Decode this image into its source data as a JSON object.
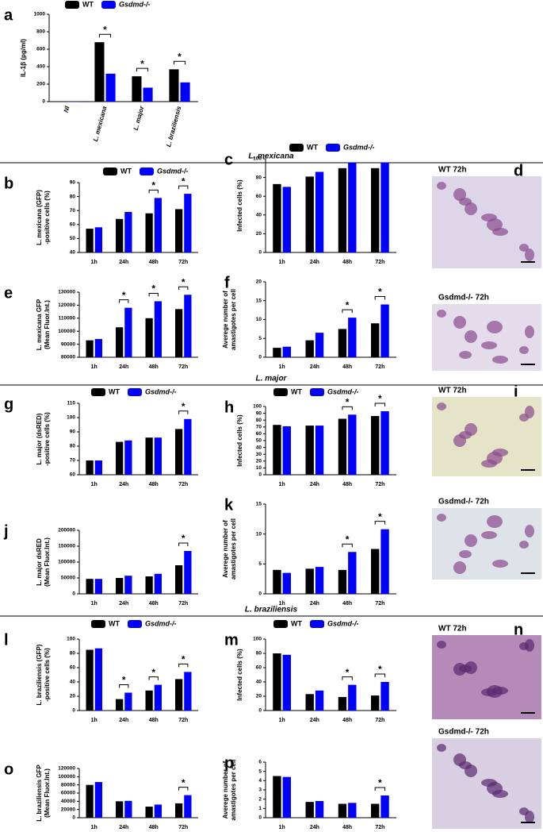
{
  "sections": [
    "L. mexicana",
    "L. major",
    "L. braziliensis"
  ],
  "micrographs": [
    {
      "panel": "d",
      "captions": [
        "WT 72h",
        "Gsdmd-/- 72h"
      ]
    },
    {
      "panel": "i",
      "captions": [
        "WT 72h",
        "Gsdmd-/- 72h"
      ]
    },
    {
      "panel": "n",
      "captions": [
        "WT 72h",
        "Gsdmd-/- 72h"
      ]
    }
  ],
  "chart_data": [
    {
      "type": "bar",
      "panel": "a",
      "ylabel": [
        "IL-1β (pg/ml)"
      ],
      "categories": [
        "NI",
        "L. mexicana",
        "L. major",
        "L. braziliensis"
      ],
      "series": [
        {
          "name": "WT",
          "color": "#000000",
          "values": [
            0,
            680,
            290,
            370
          ]
        },
        {
          "name": "Gsdmd-/-",
          "color": "#0000ff",
          "values": [
            0,
            320,
            160,
            220
          ]
        }
      ],
      "ylim": [
        0,
        1000
      ],
      "yticks": [
        0,
        200,
        400,
        600,
        800,
        1000
      ],
      "annotations": [
        {
          "text": "*",
          "category": "L. mexicana"
        },
        {
          "text": "*",
          "category": "L. major"
        },
        {
          "text": "*",
          "category": "L. braziliensis"
        }
      ]
    },
    {
      "type": "bar",
      "panel": "b",
      "ylabel": [
        "L. mexicana (GFP)",
        "-positive cells (%)"
      ],
      "categories": [
        "1h",
        "24h",
        "48h",
        "72h"
      ],
      "series": [
        {
          "name": "WT",
          "color": "#000000",
          "values": [
            57,
            64,
            68,
            71
          ]
        },
        {
          "name": "Gsdmd-/-",
          "color": "#0000ff",
          "values": [
            58,
            69,
            79,
            82
          ]
        }
      ],
      "ylim": [
        40,
        90
      ],
      "yticks": [
        40,
        50,
        60,
        70,
        80,
        90
      ],
      "annotations": [
        {
          "text": "*",
          "category": "48h"
        },
        {
          "text": "*",
          "category": "72h"
        }
      ]
    },
    {
      "type": "bar",
      "panel": "c",
      "ylabel": [
        "Infected cells (%)"
      ],
      "categories": [
        "1h",
        "24h",
        "48h",
        "72h"
      ],
      "series": [
        {
          "name": "WT",
          "color": "#000000",
          "values": [
            73,
            81,
            90,
            90
          ]
        },
        {
          "name": "Gsdmd-/-",
          "color": "#0000ff",
          "values": [
            70,
            86,
            96,
            96
          ]
        }
      ],
      "ylim": [
        0,
        100
      ],
      "yticks": [
        0,
        20,
        40,
        60,
        80,
        100
      ],
      "annotations": []
    },
    {
      "type": "bar",
      "panel": "e",
      "ylabel": [
        "L. mexicana GFP",
        "(Mean Fluor.Int.)"
      ],
      "categories": [
        "1h",
        "24h",
        "48h",
        "72h"
      ],
      "series": [
        {
          "color": "#000000",
          "values": [
            93000,
            103000,
            110000,
            117000
          ]
        },
        {
          "color": "#0000ff",
          "values": [
            94000,
            118000,
            123000,
            128000
          ]
        }
      ],
      "ylim": [
        80000,
        130000
      ],
      "yticks": [
        80000,
        90000,
        100000,
        110000,
        120000,
        130000
      ],
      "annotations": [
        {
          "text": "*",
          "category": "24h"
        },
        {
          "text": "*",
          "category": "48h"
        },
        {
          "text": "*",
          "category": "72h"
        }
      ]
    },
    {
      "type": "bar",
      "panel": "f",
      "ylabel": [
        "Averege number of",
        "amastigotes per cell"
      ],
      "categories": [
        "1h",
        "24h",
        "48h",
        "72h"
      ],
      "series": [
        {
          "color": "#000000",
          "values": [
            2.5,
            4.5,
            7.5,
            9
          ]
        },
        {
          "color": "#0000ff",
          "values": [
            2.8,
            6.5,
            10.5,
            14
          ]
        }
      ],
      "ylim": [
        0,
        20
      ],
      "yticks": [
        0,
        5,
        10,
        15,
        20
      ],
      "annotations": [
        {
          "text": "*",
          "category": "48h"
        },
        {
          "text": "*",
          "category": "72h"
        }
      ]
    },
    {
      "type": "bar",
      "panel": "g",
      "ylabel": [
        "L. major (dsRED)",
        "-positive cells (%)"
      ],
      "categories": [
        "1h",
        "24h",
        "48h",
        "72h"
      ],
      "series": [
        {
          "name": "WT",
          "color": "#000000",
          "values": [
            70,
            83,
            86,
            92
          ]
        },
        {
          "name": "Gsdmd-/-",
          "color": "#0000ff",
          "values": [
            70,
            84,
            86,
            99
          ]
        }
      ],
      "ylim": [
        60,
        110
      ],
      "yticks": [
        60,
        70,
        80,
        90,
        100,
        110
      ],
      "annotations": [
        {
          "text": "*",
          "category": "72h"
        }
      ]
    },
    {
      "type": "bar",
      "panel": "h",
      "ylabel": [
        "Infected cells (%)"
      ],
      "categories": [
        "1h",
        "24h",
        "48h",
        "72h"
      ],
      "series": [
        {
          "name": "WT",
          "color": "#000000",
          "values": [
            73,
            72,
            82,
            86
          ]
        },
        {
          "name": "Gsdmd-/-",
          "color": "#0000ff",
          "values": [
            71,
            72,
            88,
            93
          ]
        }
      ],
      "ylim": [
        0,
        100
      ],
      "yticks": [
        0,
        10,
        20,
        30,
        40,
        50,
        60,
        70,
        80,
        90,
        100
      ],
      "annotations": [
        {
          "text": "*",
          "category": "48h"
        },
        {
          "text": "*",
          "category": "72h"
        }
      ]
    },
    {
      "type": "bar",
      "panel": "j",
      "ylabel": [
        "L. major dsRED",
        "(Mean Fluor.Int.)"
      ],
      "categories": [
        "1h",
        "24h",
        "48h",
        "72h"
      ],
      "series": [
        {
          "color": "#000000",
          "values": [
            47000,
            50000,
            55000,
            90000
          ]
        },
        {
          "color": "#0000ff",
          "values": [
            47000,
            57000,
            63000,
            135000
          ]
        }
      ],
      "ylim": [
        0,
        200000
      ],
      "yticks": [
        0,
        50000,
        100000,
        150000,
        200000
      ],
      "annotations": [
        {
          "text": "*",
          "category": "72h"
        }
      ]
    },
    {
      "type": "bar",
      "panel": "k",
      "ylabel": [
        "Averege number of",
        "amastigotes per cell"
      ],
      "categories": [
        "1h",
        "24h",
        "48h",
        "72h"
      ],
      "series": [
        {
          "color": "#000000",
          "values": [
            4,
            4.2,
            4,
            7.5
          ]
        },
        {
          "color": "#0000ff",
          "values": [
            3.5,
            4.5,
            7,
            10.8
          ]
        }
      ],
      "ylim": [
        0,
        15
      ],
      "yticks": [
        0,
        5,
        10,
        15
      ],
      "annotations": [
        {
          "text": "*",
          "category": "48h"
        },
        {
          "text": "*",
          "category": "72h"
        }
      ]
    },
    {
      "type": "bar",
      "panel": "l",
      "ylabel": [
        "L. braziliensis (GFP)",
        "-positive cells (%)"
      ],
      "categories": [
        "1h",
        "24h",
        "48h",
        "72h"
      ],
      "series": [
        {
          "name": "WT",
          "color": "#000000",
          "values": [
            85,
            16,
            28,
            44
          ]
        },
        {
          "name": "Gsdmd-/-",
          "color": "#0000ff",
          "values": [
            87,
            25,
            36,
            54
          ]
        }
      ],
      "ylim": [
        0,
        100
      ],
      "yticks": [
        0,
        20,
        40,
        60,
        80,
        100
      ],
      "annotations": [
        {
          "text": "*",
          "category": "24h"
        },
        {
          "text": "*",
          "category": "48h"
        },
        {
          "text": "*",
          "category": "72h"
        }
      ]
    },
    {
      "type": "bar",
      "panel": "m",
      "ylabel": [
        "Infected cells (%)"
      ],
      "categories": [
        "1h",
        "24h",
        "48h",
        "72h"
      ],
      "series": [
        {
          "name": "WT",
          "color": "#000000",
          "values": [
            80,
            23,
            19,
            21
          ]
        },
        {
          "name": "Gsdmd-/-",
          "color": "#0000ff",
          "values": [
            78,
            28,
            36,
            40
          ]
        }
      ],
      "ylim": [
        0,
        100
      ],
      "yticks": [
        0,
        20,
        40,
        60,
        80,
        100
      ],
      "annotations": [
        {
          "text": "*",
          "category": "48h"
        },
        {
          "text": "*",
          "category": "72h"
        }
      ]
    },
    {
      "type": "bar",
      "panel": "o",
      "ylabel": [
        "L. braziliensis GFP",
        "(Mean Fluor.Int.)"
      ],
      "categories": [
        "1h",
        "24h",
        "48h",
        "72h"
      ],
      "series": [
        {
          "color": "#000000",
          "values": [
            80000,
            40000,
            27000,
            35000
          ]
        },
        {
          "color": "#0000ff",
          "values": [
            87000,
            41000,
            32000,
            55000
          ]
        }
      ],
      "ylim": [
        0,
        120000
      ],
      "yticks": [
        0,
        20000,
        40000,
        60000,
        80000,
        100000,
        120000
      ],
      "annotations": [
        {
          "text": "*",
          "category": "72h"
        }
      ]
    },
    {
      "type": "bar",
      "panel": "p",
      "ylabel": [
        "Averege number of",
        "amastigotes per cell"
      ],
      "categories": [
        "1h",
        "24h",
        "48h",
        "72h"
      ],
      "series": [
        {
          "color": "#000000",
          "values": [
            4.5,
            1.7,
            1.5,
            1.5
          ]
        },
        {
          "color": "#0000ff",
          "values": [
            4.4,
            1.8,
            1.6,
            2.4
          ]
        }
      ],
      "ylim": [
        0,
        6
      ],
      "yticks": [
        0,
        1,
        2,
        3,
        4,
        5,
        6
      ],
      "annotations": [
        {
          "text": "*",
          "category": "72h"
        }
      ]
    }
  ]
}
